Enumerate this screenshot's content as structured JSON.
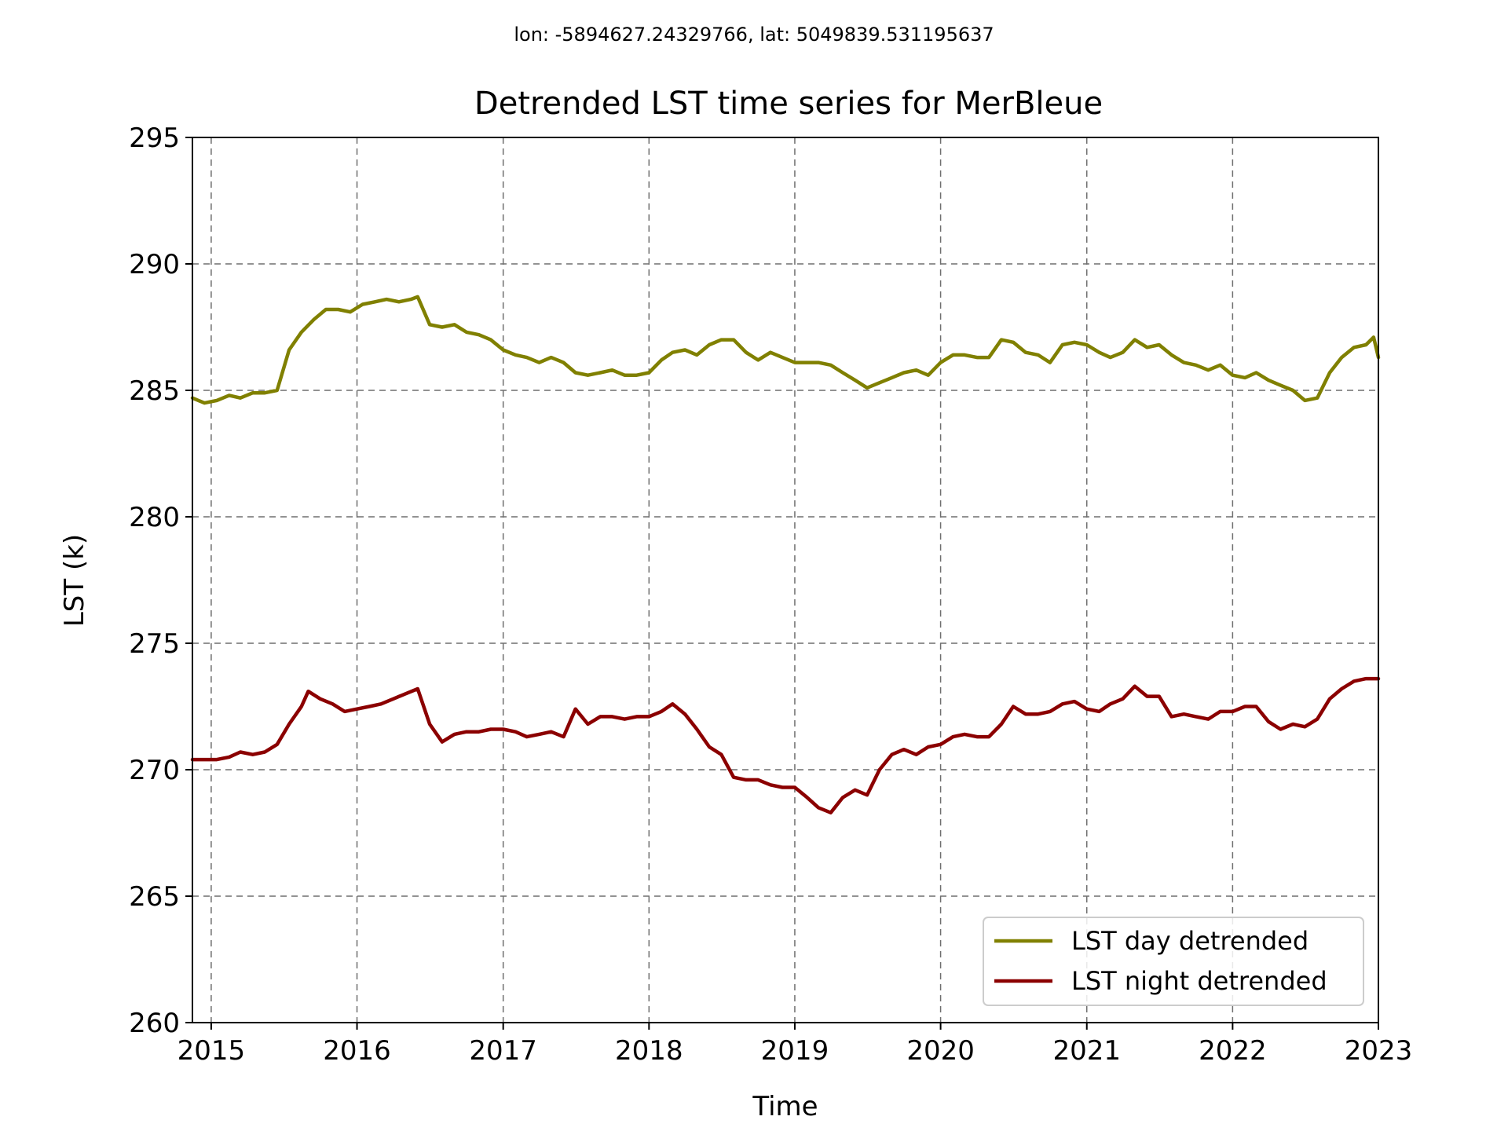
{
  "chart_data": {
    "type": "line",
    "suptitle": "lon: -5894627.24329766, lat: 5049839.531195637",
    "title": "Detrended LST time series for MerBleue",
    "xlabel": "Time",
    "ylabel": "LST (k)",
    "xlim": [
      "2014-11-15",
      "2023-01-01"
    ],
    "ylim": [
      260,
      295
    ],
    "xticks": [
      "2015",
      "2016",
      "2017",
      "2018",
      "2019",
      "2020",
      "2021",
      "2022",
      "2023"
    ],
    "yticks": [
      260,
      265,
      270,
      275,
      280,
      285,
      290,
      295
    ],
    "grid": true,
    "grid_style": "dashed",
    "legend_position": "lower-right",
    "series": [
      {
        "name": "LST day detrended",
        "color": "#808000",
        "points": [
          [
            "2014-11-15",
            284.7
          ],
          [
            "2014-12-15",
            284.5
          ],
          [
            "2015-01-15",
            284.6
          ],
          [
            "2015-02-15",
            284.8
          ],
          [
            "2015-03-15",
            284.7
          ],
          [
            "2015-04-15",
            284.9
          ],
          [
            "2015-05-15",
            284.9
          ],
          [
            "2015-06-15",
            285.0
          ],
          [
            "2015-07-15",
            286.6
          ],
          [
            "2015-08-15",
            287.3
          ],
          [
            "2015-09-15",
            287.8
          ],
          [
            "2015-10-15",
            288.2
          ],
          [
            "2015-11-15",
            288.2
          ],
          [
            "2015-12-15",
            288.1
          ],
          [
            "2016-01-15",
            288.4
          ],
          [
            "2016-02-15",
            288.5
          ],
          [
            "2016-03-15",
            288.6
          ],
          [
            "2016-04-15",
            288.5
          ],
          [
            "2016-05-15",
            288.6
          ],
          [
            "2016-06-01",
            288.7
          ],
          [
            "2016-07-01",
            287.6
          ],
          [
            "2016-08-01",
            287.5
          ],
          [
            "2016-09-01",
            287.6
          ],
          [
            "2016-10-01",
            287.3
          ],
          [
            "2016-11-01",
            287.2
          ],
          [
            "2016-12-01",
            287.0
          ],
          [
            "2017-01-01",
            286.6
          ],
          [
            "2017-02-01",
            286.4
          ],
          [
            "2017-03-01",
            286.3
          ],
          [
            "2017-04-01",
            286.1
          ],
          [
            "2017-05-01",
            286.3
          ],
          [
            "2017-06-01",
            286.1
          ],
          [
            "2017-07-01",
            285.7
          ],
          [
            "2017-08-01",
            285.6
          ],
          [
            "2017-09-01",
            285.7
          ],
          [
            "2017-10-01",
            285.8
          ],
          [
            "2017-11-01",
            285.6
          ],
          [
            "2017-12-01",
            285.6
          ],
          [
            "2018-01-01",
            285.7
          ],
          [
            "2018-02-01",
            286.2
          ],
          [
            "2018-03-01",
            286.5
          ],
          [
            "2018-04-01",
            286.6
          ],
          [
            "2018-05-01",
            286.4
          ],
          [
            "2018-06-01",
            286.8
          ],
          [
            "2018-07-01",
            287.0
          ],
          [
            "2018-08-01",
            287.0
          ],
          [
            "2018-09-01",
            286.5
          ],
          [
            "2018-10-01",
            286.2
          ],
          [
            "2018-11-01",
            286.5
          ],
          [
            "2018-12-01",
            286.3
          ],
          [
            "2019-01-01",
            286.1
          ],
          [
            "2019-02-01",
            286.1
          ],
          [
            "2019-03-01",
            286.1
          ],
          [
            "2019-04-01",
            286.0
          ],
          [
            "2019-05-01",
            285.7
          ],
          [
            "2019-06-01",
            285.4
          ],
          [
            "2019-07-01",
            285.1
          ],
          [
            "2019-08-01",
            285.3
          ],
          [
            "2019-09-01",
            285.5
          ],
          [
            "2019-10-01",
            285.7
          ],
          [
            "2019-11-01",
            285.8
          ],
          [
            "2019-12-01",
            285.6
          ],
          [
            "2020-01-01",
            286.1
          ],
          [
            "2020-02-01",
            286.4
          ],
          [
            "2020-03-01",
            286.4
          ],
          [
            "2020-04-01",
            286.3
          ],
          [
            "2020-05-01",
            286.3
          ],
          [
            "2020-06-01",
            287.0
          ],
          [
            "2020-07-01",
            286.9
          ],
          [
            "2020-08-01",
            286.5
          ],
          [
            "2020-09-01",
            286.4
          ],
          [
            "2020-10-01",
            286.1
          ],
          [
            "2020-11-01",
            286.8
          ],
          [
            "2020-12-01",
            286.9
          ],
          [
            "2021-01-01",
            286.8
          ],
          [
            "2021-02-01",
            286.5
          ],
          [
            "2021-03-01",
            286.3
          ],
          [
            "2021-04-01",
            286.5
          ],
          [
            "2021-05-01",
            287.0
          ],
          [
            "2021-06-01",
            286.7
          ],
          [
            "2021-07-01",
            286.8
          ],
          [
            "2021-08-01",
            286.4
          ],
          [
            "2021-09-01",
            286.1
          ],
          [
            "2021-10-01",
            286.0
          ],
          [
            "2021-11-01",
            285.8
          ],
          [
            "2021-12-01",
            286.0
          ],
          [
            "2022-01-01",
            285.6
          ],
          [
            "2022-02-01",
            285.5
          ],
          [
            "2022-03-01",
            285.7
          ],
          [
            "2022-04-01",
            285.4
          ],
          [
            "2022-05-01",
            285.2
          ],
          [
            "2022-06-01",
            285.0
          ],
          [
            "2022-07-01",
            284.6
          ],
          [
            "2022-08-01",
            284.7
          ],
          [
            "2022-09-01",
            285.7
          ],
          [
            "2022-10-01",
            286.3
          ],
          [
            "2022-11-01",
            286.7
          ],
          [
            "2022-12-01",
            286.8
          ],
          [
            "2022-12-20",
            287.1
          ],
          [
            "2023-01-01",
            286.3
          ]
        ]
      },
      {
        "name": "LST night detrended",
        "color": "#8b0000",
        "points": [
          [
            "2014-11-15",
            270.4
          ],
          [
            "2014-12-15",
            270.4
          ],
          [
            "2015-01-15",
            270.4
          ],
          [
            "2015-02-15",
            270.5
          ],
          [
            "2015-03-15",
            270.7
          ],
          [
            "2015-04-15",
            270.6
          ],
          [
            "2015-05-15",
            270.7
          ],
          [
            "2015-06-15",
            271.0
          ],
          [
            "2015-07-15",
            271.8
          ],
          [
            "2015-08-15",
            272.5
          ],
          [
            "2015-09-01",
            273.1
          ],
          [
            "2015-10-01",
            272.8
          ],
          [
            "2015-11-01",
            272.6
          ],
          [
            "2015-12-01",
            272.3
          ],
          [
            "2016-01-01",
            272.4
          ],
          [
            "2016-02-01",
            272.5
          ],
          [
            "2016-03-01",
            272.6
          ],
          [
            "2016-04-01",
            272.8
          ],
          [
            "2016-05-01",
            273.0
          ],
          [
            "2016-06-01",
            273.2
          ],
          [
            "2016-07-01",
            271.8
          ],
          [
            "2016-08-01",
            271.1
          ],
          [
            "2016-09-01",
            271.4
          ],
          [
            "2016-10-01",
            271.5
          ],
          [
            "2016-11-01",
            271.5
          ],
          [
            "2016-12-01",
            271.6
          ],
          [
            "2017-01-01",
            271.6
          ],
          [
            "2017-02-01",
            271.5
          ],
          [
            "2017-03-01",
            271.3
          ],
          [
            "2017-04-01",
            271.4
          ],
          [
            "2017-05-01",
            271.5
          ],
          [
            "2017-06-01",
            271.3
          ],
          [
            "2017-07-01",
            272.4
          ],
          [
            "2017-08-01",
            271.8
          ],
          [
            "2017-09-01",
            272.1
          ],
          [
            "2017-10-01",
            272.1
          ],
          [
            "2017-11-01",
            272.0
          ],
          [
            "2017-12-01",
            272.1
          ],
          [
            "2018-01-01",
            272.1
          ],
          [
            "2018-02-01",
            272.3
          ],
          [
            "2018-03-01",
            272.6
          ],
          [
            "2018-04-01",
            272.2
          ],
          [
            "2018-05-01",
            271.6
          ],
          [
            "2018-06-01",
            270.9
          ],
          [
            "2018-07-01",
            270.6
          ],
          [
            "2018-08-01",
            269.7
          ],
          [
            "2018-09-01",
            269.6
          ],
          [
            "2018-10-01",
            269.6
          ],
          [
            "2018-11-01",
            269.4
          ],
          [
            "2018-12-01",
            269.3
          ],
          [
            "2019-01-01",
            269.3
          ],
          [
            "2019-02-01",
            268.9
          ],
          [
            "2019-03-01",
            268.5
          ],
          [
            "2019-04-01",
            268.3
          ],
          [
            "2019-05-01",
            268.9
          ],
          [
            "2019-06-01",
            269.2
          ],
          [
            "2019-07-01",
            269.0
          ],
          [
            "2019-08-01",
            270.0
          ],
          [
            "2019-09-01",
            270.6
          ],
          [
            "2019-10-01",
            270.8
          ],
          [
            "2019-11-01",
            270.6
          ],
          [
            "2019-12-01",
            270.9
          ],
          [
            "2020-01-01",
            271.0
          ],
          [
            "2020-02-01",
            271.3
          ],
          [
            "2020-03-01",
            271.4
          ],
          [
            "2020-04-01",
            271.3
          ],
          [
            "2020-05-01",
            271.3
          ],
          [
            "2020-06-01",
            271.8
          ],
          [
            "2020-07-01",
            272.5
          ],
          [
            "2020-08-01",
            272.2
          ],
          [
            "2020-09-01",
            272.2
          ],
          [
            "2020-10-01",
            272.3
          ],
          [
            "2020-11-01",
            272.6
          ],
          [
            "2020-12-01",
            272.7
          ],
          [
            "2021-01-01",
            272.4
          ],
          [
            "2021-02-01",
            272.3
          ],
          [
            "2021-03-01",
            272.6
          ],
          [
            "2021-04-01",
            272.8
          ],
          [
            "2021-05-01",
            273.3
          ],
          [
            "2021-06-01",
            272.9
          ],
          [
            "2021-07-01",
            272.9
          ],
          [
            "2021-08-01",
            272.1
          ],
          [
            "2021-09-01",
            272.2
          ],
          [
            "2021-10-01",
            272.1
          ],
          [
            "2021-11-01",
            272.0
          ],
          [
            "2021-12-01",
            272.3
          ],
          [
            "2022-01-01",
            272.3
          ],
          [
            "2022-02-01",
            272.5
          ],
          [
            "2022-03-01",
            272.5
          ],
          [
            "2022-04-01",
            271.9
          ],
          [
            "2022-05-01",
            271.6
          ],
          [
            "2022-06-01",
            271.8
          ],
          [
            "2022-07-01",
            271.7
          ],
          [
            "2022-08-01",
            272.0
          ],
          [
            "2022-09-01",
            272.8
          ],
          [
            "2022-10-01",
            273.2
          ],
          [
            "2022-11-01",
            273.5
          ],
          [
            "2022-12-01",
            273.6
          ],
          [
            "2023-01-01",
            273.6
          ]
        ]
      }
    ]
  }
}
